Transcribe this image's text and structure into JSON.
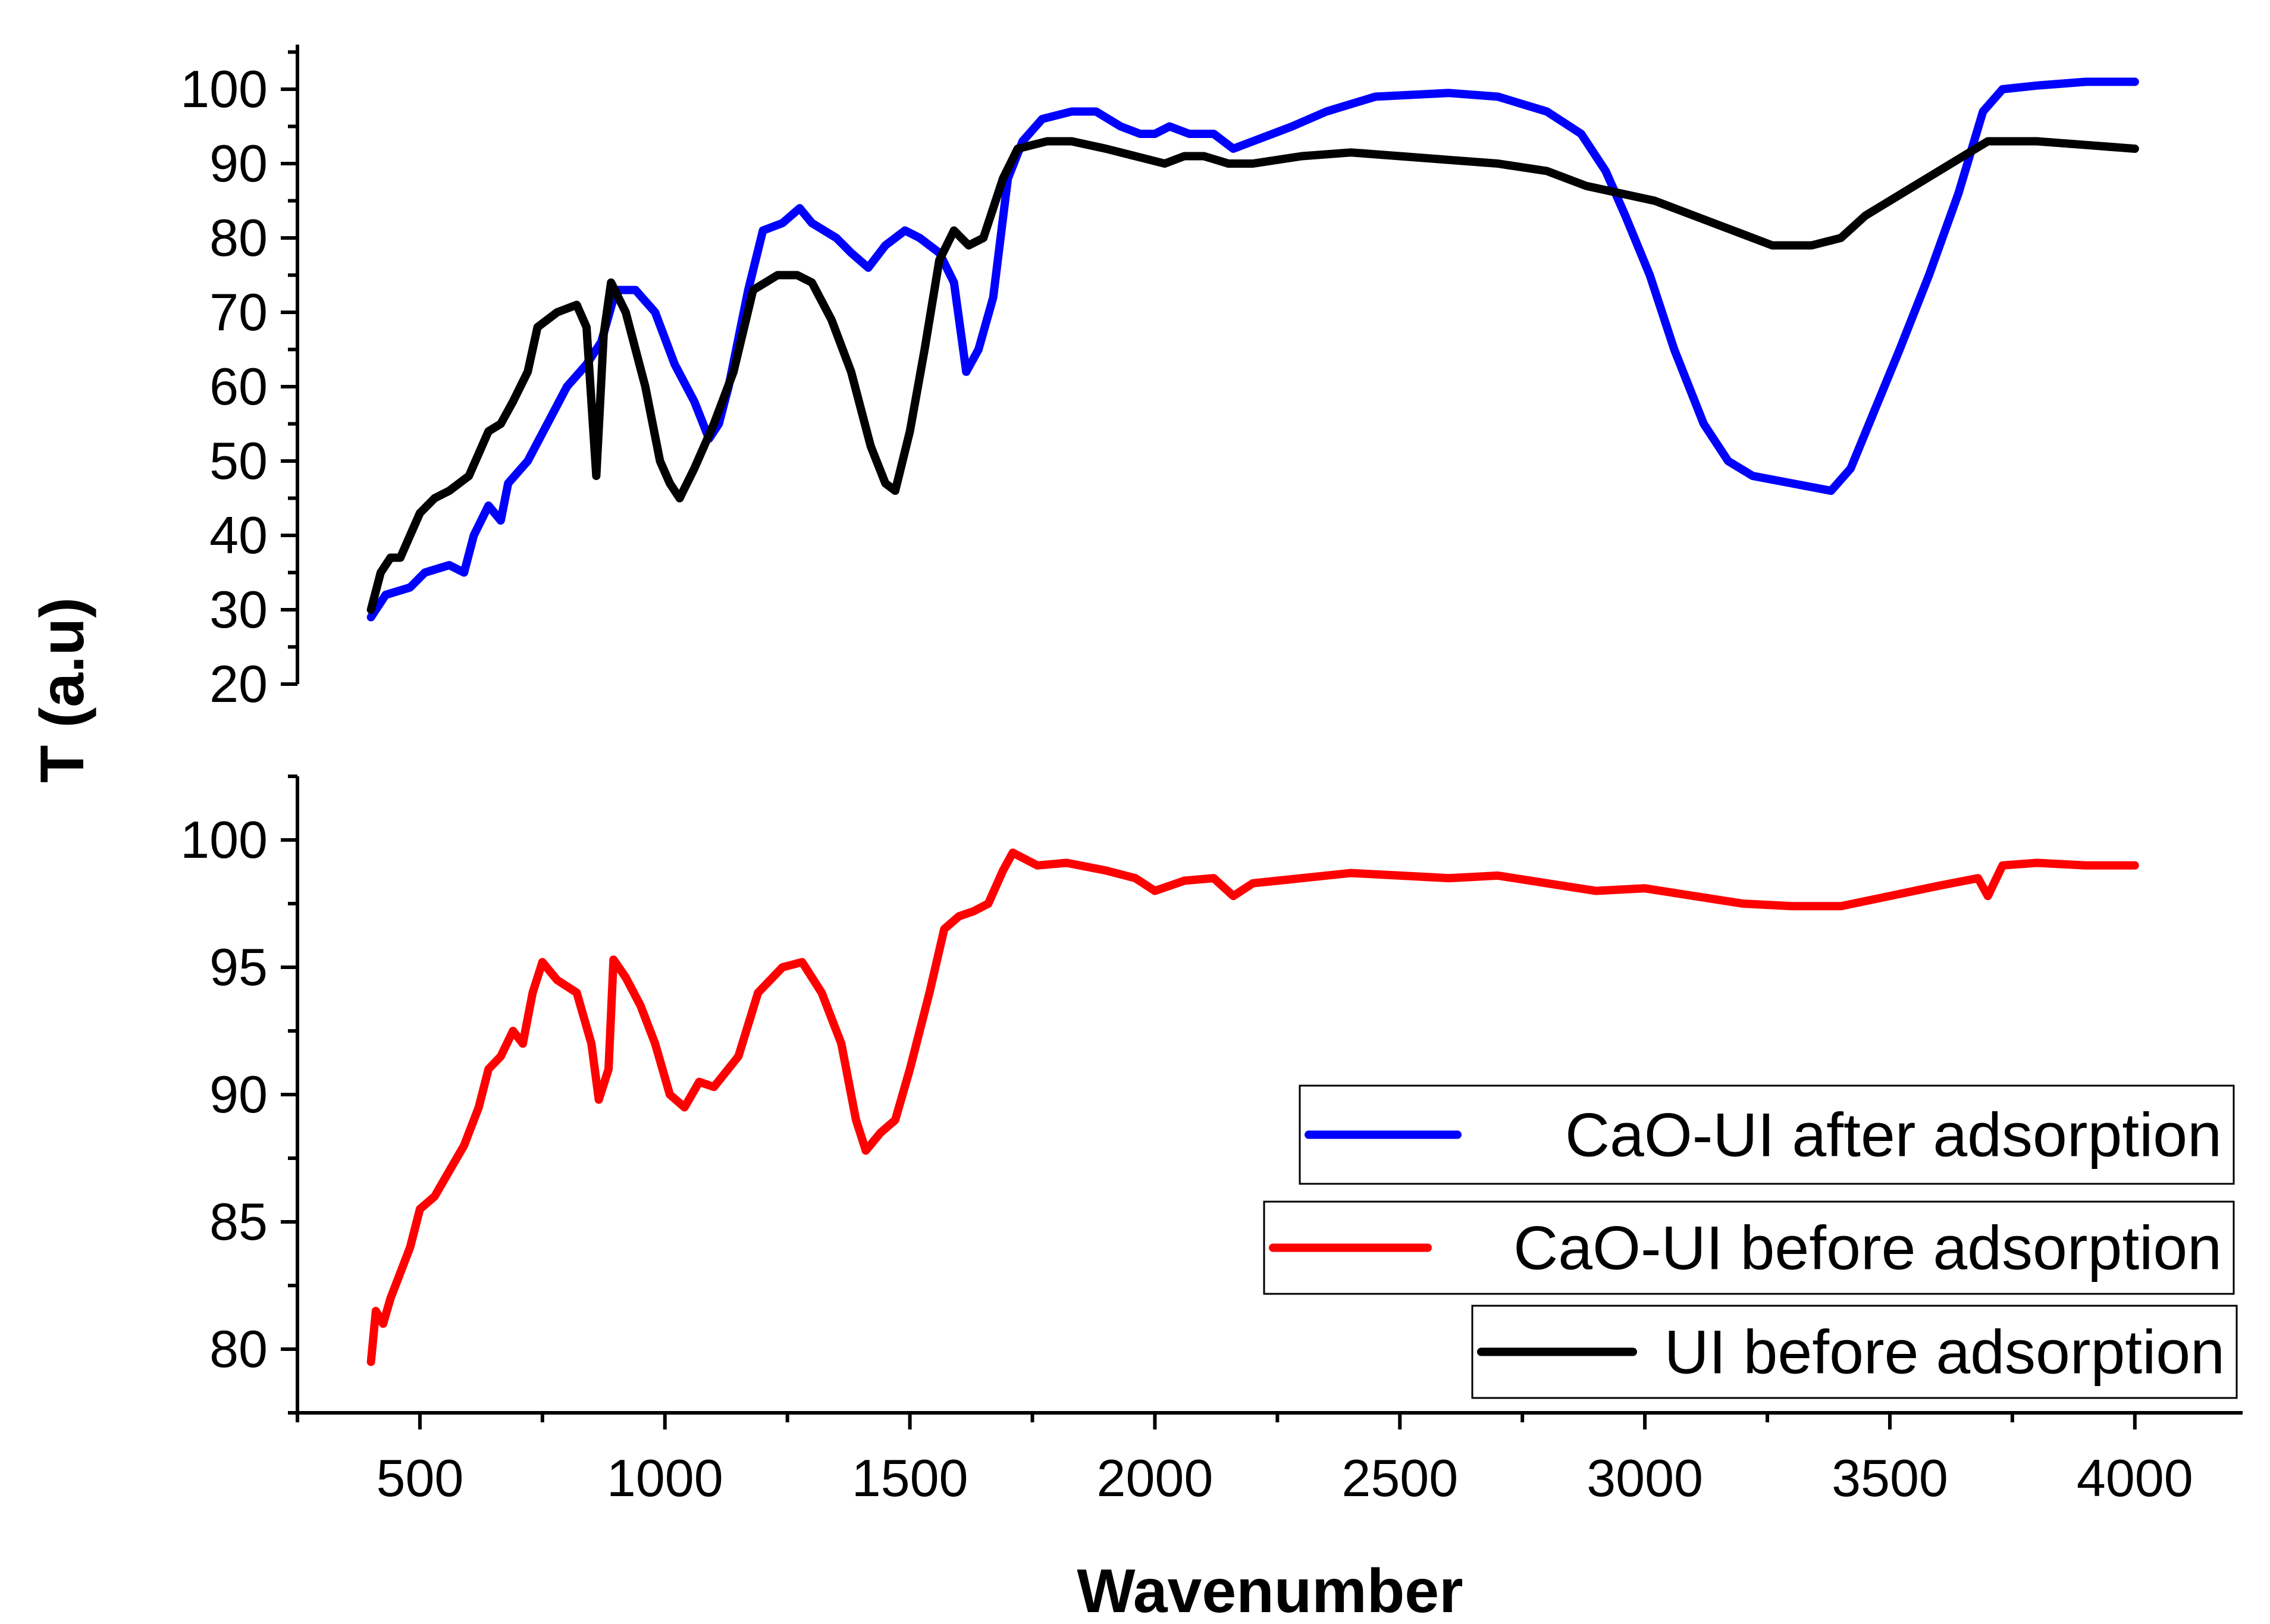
{
  "chart_data": {
    "type": "line",
    "title": "",
    "xlabel": "Wavenumber",
    "ylabel": "T (a.u)",
    "xlim": [
      250,
      4220
    ],
    "x_ticks": [
      500,
      1000,
      1500,
      2000,
      2500,
      3000,
      3500,
      4000
    ],
    "x_tick_labels": [
      "500",
      "1000",
      "1500",
      "2000",
      "2500",
      "3000",
      "3500",
      "4000"
    ],
    "grid": false,
    "legend_position": "bottom-right",
    "panels": [
      {
        "name": "top",
        "ylim": [
          20,
          106
        ],
        "y_ticks": [
          20,
          30,
          40,
          50,
          60,
          70,
          80,
          90,
          100
        ],
        "y_tick_labels": [
          "20",
          "30",
          "40",
          "50",
          "60",
          "70",
          "80",
          "90",
          "100"
        ],
        "series": [
          {
            "name": "CaO-UI after adsorption",
            "color": "#0000ff",
            "points": [
              [
                400,
                29
              ],
              [
                430,
                32
              ],
              [
                480,
                33
              ],
              [
                510,
                35
              ],
              [
                560,
                36
              ],
              [
                590,
                35
              ],
              [
                610,
                40
              ],
              [
                640,
                44
              ],
              [
                665,
                42
              ],
              [
                680,
                47
              ],
              [
                720,
                50
              ],
              [
                760,
                55
              ],
              [
                800,
                60
              ],
              [
                840,
                63
              ],
              [
                870,
                66
              ],
              [
                900,
                73
              ],
              [
                940,
                73
              ],
              [
                980,
                70
              ],
              [
                1020,
                63
              ],
              [
                1060,
                58
              ],
              [
                1090,
                53
              ],
              [
                1110,
                55
              ],
              [
                1130,
                60
              ],
              [
                1170,
                73
              ],
              [
                1200,
                81
              ],
              [
                1240,
                82
              ],
              [
                1275,
                84
              ],
              [
                1300,
                82
              ],
              [
                1350,
                80
              ],
              [
                1380,
                78
              ],
              [
                1415,
                76
              ],
              [
                1450,
                79
              ],
              [
                1490,
                81
              ],
              [
                1520,
                80
              ],
              [
                1560,
                78
              ],
              [
                1590,
                74
              ],
              [
                1615,
                62
              ],
              [
                1640,
                65
              ],
              [
                1670,
                72
              ],
              [
                1700,
                88
              ],
              [
                1730,
                93
              ],
              [
                1770,
                96
              ],
              [
                1830,
                97
              ],
              [
                1880,
                97
              ],
              [
                1930,
                95
              ],
              [
                1970,
                94
              ],
              [
                2000,
                94
              ],
              [
                2030,
                95
              ],
              [
                2070,
                94
              ],
              [
                2120,
                94
              ],
              [
                2160,
                92
              ],
              [
                2200,
                93
              ],
              [
                2280,
                95
              ],
              [
                2350,
                97
              ],
              [
                2450,
                99
              ],
              [
                2600,
                99.5
              ],
              [
                2700,
                99
              ],
              [
                2800,
                97
              ],
              [
                2870,
                94
              ],
              [
                2920,
                89
              ],
              [
                2960,
                83
              ],
              [
                3010,
                75
              ],
              [
                3060,
                65
              ],
              [
                3120,
                55
              ],
              [
                3170,
                50
              ],
              [
                3220,
                48
              ],
              [
                3300,
                47
              ],
              [
                3380,
                46
              ],
              [
                3420,
                49
              ],
              [
                3470,
                57
              ],
              [
                3520,
                65
              ],
              [
                3580,
                75
              ],
              [
                3640,
                86
              ],
              [
                3690,
                97
              ],
              [
                3730,
                100
              ],
              [
                3800,
                100.5
              ],
              [
                3900,
                101
              ],
              [
                4000,
                101
              ]
            ]
          },
          {
            "name": "UI before adsorption",
            "color": "#000000",
            "points": [
              [
                400,
                30
              ],
              [
                420,
                35
              ],
              [
                440,
                37
              ],
              [
                460,
                37
              ],
              [
                480,
                40
              ],
              [
                500,
                43
              ],
              [
                530,
                45
              ],
              [
                560,
                46
              ],
              [
                600,
                48
              ],
              [
                640,
                54
              ],
              [
                665,
                55
              ],
              [
                690,
                58
              ],
              [
                720,
                62
              ],
              [
                740,
                68
              ],
              [
                780,
                70
              ],
              [
                820,
                71
              ],
              [
                840,
                68
              ],
              [
                860,
                48
              ],
              [
                875,
                67
              ],
              [
                890,
                74
              ],
              [
                920,
                70
              ],
              [
                960,
                60
              ],
              [
                990,
                50
              ],
              [
                1010,
                47
              ],
              [
                1030,
                45
              ],
              [
                1060,
                49
              ],
              [
                1100,
                55
              ],
              [
                1140,
                62
              ],
              [
                1180,
                73
              ],
              [
                1230,
                75
              ],
              [
                1270,
                75
              ],
              [
                1300,
                74
              ],
              [
                1340,
                69
              ],
              [
                1380,
                62
              ],
              [
                1420,
                52
              ],
              [
                1450,
                47
              ],
              [
                1470,
                46
              ],
              [
                1500,
                54
              ],
              [
                1530,
                65
              ],
              [
                1560,
                77
              ],
              [
                1590,
                81
              ],
              [
                1620,
                79
              ],
              [
                1650,
                80
              ],
              [
                1690,
                88
              ],
              [
                1720,
                92
              ],
              [
                1780,
                93
              ],
              [
                1830,
                93
              ],
              [
                1900,
                92
              ],
              [
                1960,
                91
              ],
              [
                2020,
                90
              ],
              [
                2060,
                91
              ],
              [
                2100,
                91
              ],
              [
                2150,
                90
              ],
              [
                2200,
                90
              ],
              [
                2300,
                91
              ],
              [
                2400,
                91.5
              ],
              [
                2500,
                91
              ],
              [
                2600,
                90.5
              ],
              [
                2700,
                90
              ],
              [
                2800,
                89
              ],
              [
                2880,
                87
              ],
              [
                2950,
                86
              ],
              [
                3020,
                85
              ],
              [
                3100,
                83
              ],
              [
                3180,
                81
              ],
              [
                3260,
                79
              ],
              [
                3340,
                79
              ],
              [
                3400,
                80
              ],
              [
                3450,
                83
              ],
              [
                3500,
                85
              ],
              [
                3550,
                87
              ],
              [
                3600,
                89
              ],
              [
                3700,
                93
              ],
              [
                3800,
                93
              ],
              [
                3900,
                92.5
              ],
              [
                4000,
                92
              ]
            ]
          }
        ]
      },
      {
        "name": "bottom",
        "ylim": [
          77.5,
          102.5
        ],
        "y_ticks": [
          80,
          85,
          90,
          95,
          100
        ],
        "y_tick_labels": [
          "80",
          "85",
          "90",
          "95",
          "100"
        ],
        "series": [
          {
            "name": "CaO-UI before adsorption",
            "color": "#ff0000",
            "points": [
              [
                400,
                79.5
              ],
              [
                410,
                81.5
              ],
              [
                425,
                81
              ],
              [
                440,
                82
              ],
              [
                460,
                83
              ],
              [
                480,
                84
              ],
              [
                500,
                85.5
              ],
              [
                530,
                86
              ],
              [
                560,
                87
              ],
              [
                590,
                88
              ],
              [
                620,
                89.5
              ],
              [
                640,
                91
              ],
              [
                665,
                91.5
              ],
              [
                690,
                92.5
              ],
              [
                710,
                92
              ],
              [
                730,
                94
              ],
              [
                750,
                95.2
              ],
              [
                780,
                94.5
              ],
              [
                820,
                94
              ],
              [
                850,
                92
              ],
              [
                865,
                89.8
              ],
              [
                885,
                91
              ],
              [
                895,
                95.3
              ],
              [
                920,
                94.6
              ],
              [
                950,
                93.5
              ],
              [
                980,
                92
              ],
              [
                1010,
                90
              ],
              [
                1040,
                89.5
              ],
              [
                1070,
                90.5
              ],
              [
                1100,
                90.3
              ],
              [
                1150,
                91.5
              ],
              [
                1190,
                94
              ],
              [
                1240,
                95
              ],
              [
                1280,
                95.2
              ],
              [
                1320,
                94
              ],
              [
                1360,
                92
              ],
              [
                1390,
                89
              ],
              [
                1410,
                87.8
              ],
              [
                1440,
                88.5
              ],
              [
                1470,
                89
              ],
              [
                1500,
                91
              ],
              [
                1540,
                94
              ],
              [
                1570,
                96.5
              ],
              [
                1600,
                97
              ],
              [
                1630,
                97.2
              ],
              [
                1660,
                97.5
              ],
              [
                1690,
                98.8
              ],
              [
                1710,
                99.5
              ],
              [
                1760,
                99
              ],
              [
                1820,
                99.1
              ],
              [
                1900,
                98.8
              ],
              [
                1960,
                98.5
              ],
              [
                2000,
                98
              ],
              [
                2060,
                98.4
              ],
              [
                2120,
                98.5
              ],
              [
                2160,
                97.8
              ],
              [
                2200,
                98.3
              ],
              [
                2300,
                98.5
              ],
              [
                2400,
                98.7
              ],
              [
                2500,
                98.6
              ],
              [
                2600,
                98.5
              ],
              [
                2700,
                98.6
              ],
              [
                2800,
                98.3
              ],
              [
                2900,
                98
              ],
              [
                3000,
                98.1
              ],
              [
                3100,
                97.8
              ],
              [
                3200,
                97.5
              ],
              [
                3300,
                97.4
              ],
              [
                3400,
                97.4
              ],
              [
                3500,
                97.8
              ],
              [
                3600,
                98.2
              ],
              [
                3680,
                98.5
              ],
              [
                3700,
                97.8
              ],
              [
                3730,
                99
              ],
              [
                3800,
                99.1
              ],
              [
                3900,
                99
              ],
              [
                4000,
                99
              ]
            ]
          }
        ]
      }
    ],
    "legend": [
      {
        "label": "CaO-UI after adsorption",
        "color": "#0000ff"
      },
      {
        "label": "CaO-UI before adsorption",
        "color": "#ff0000"
      },
      {
        "label": "UI before adsorption",
        "color": "#000000"
      }
    ]
  }
}
